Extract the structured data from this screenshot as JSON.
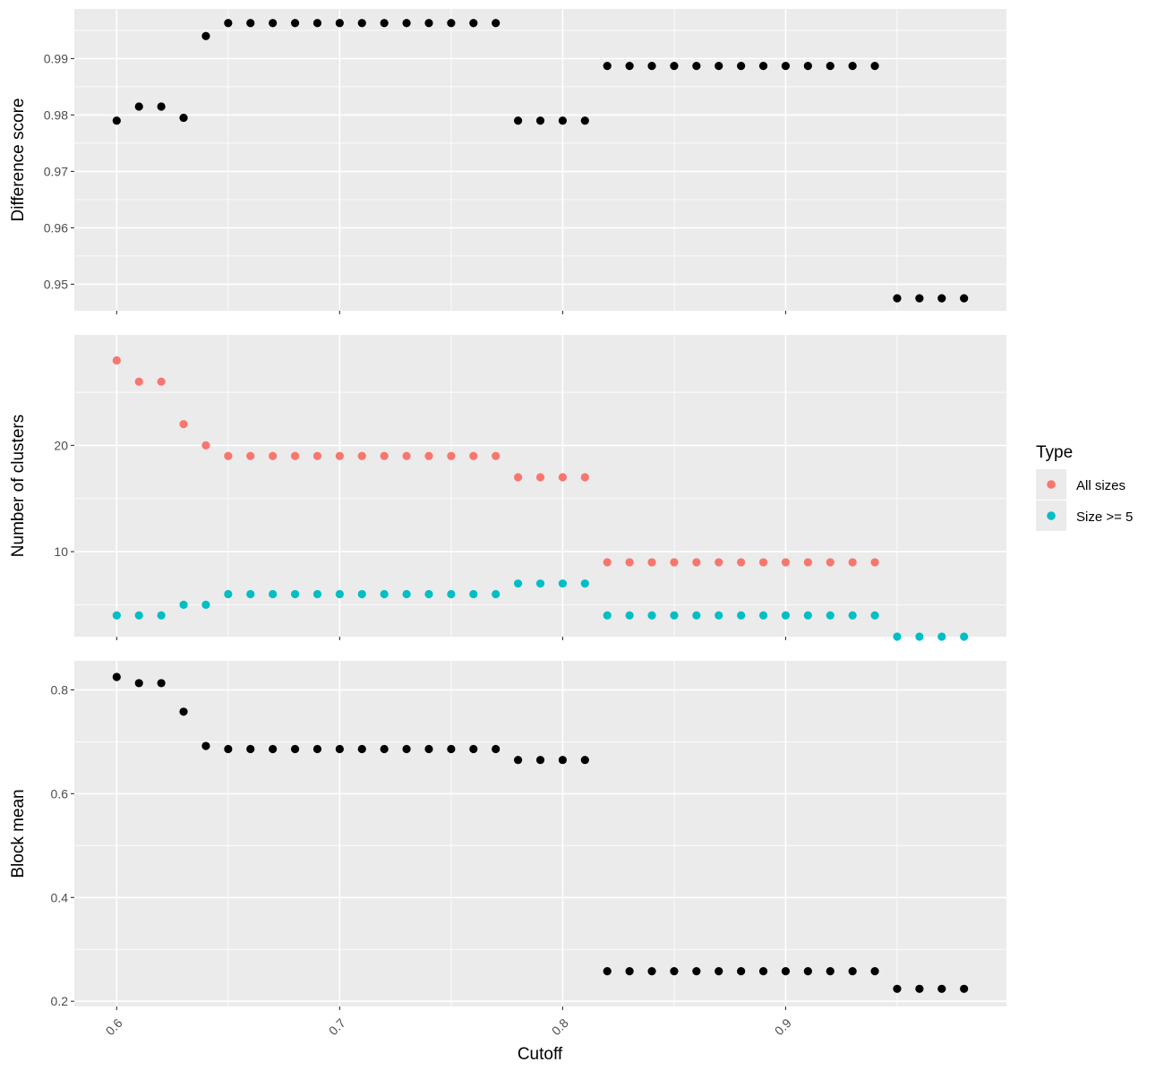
{
  "chart_data": {
    "type": "scatter",
    "xlabel": "Cutoff",
    "x_ticks": [
      "0.6",
      "0.7",
      "0.8",
      "0.9"
    ],
    "xlim": [
      0.581,
      0.999
    ],
    "colors": {
      "all_sizes": "#F8766D",
      "size_ge_5": "#00BFC4",
      "single": "#000000"
    },
    "legend": {
      "title": "Type",
      "position": "right",
      "items": [
        "All sizes",
        "Size >= 5"
      ]
    },
    "grid": true,
    "panels": [
      {
        "ylabel": "Difference score",
        "ylim": [
          0.9453,
          0.9988
        ],
        "y_ticks": [
          0.95,
          0.96,
          0.97,
          0.98,
          0.99
        ],
        "y_tick_labels": [
          "0.95",
          "0.96",
          "0.97",
          "0.98",
          "0.99"
        ],
        "y_minor": [
          0.955,
          0.965,
          0.975,
          0.985,
          0.995
        ],
        "series": [
          {
            "color_key": "single",
            "x": [
              0.6,
              0.61,
              0.62,
              0.63,
              0.64,
              0.65,
              0.66,
              0.67,
              0.68,
              0.69,
              0.7,
              0.71,
              0.72,
              0.73,
              0.74,
              0.75,
              0.76,
              0.77,
              0.78,
              0.79,
              0.8,
              0.81,
              0.82,
              0.83,
              0.84,
              0.85,
              0.86,
              0.87,
              0.88,
              0.89,
              0.9,
              0.91,
              0.92,
              0.93,
              0.94,
              0.95,
              0.96,
              0.97,
              0.98
            ],
            "y": [
              0.979,
              0.9815,
              0.9815,
              0.9795,
              0.994,
              0.9963,
              0.9963,
              0.9963,
              0.9963,
              0.9963,
              0.9963,
              0.9963,
              0.9963,
              0.9963,
              0.9963,
              0.9963,
              0.9963,
              0.9963,
              0.979,
              0.979,
              0.979,
              0.979,
              0.9887,
              0.9887,
              0.9887,
              0.9887,
              0.9887,
              0.9887,
              0.9887,
              0.9887,
              0.9887,
              0.9887,
              0.9887,
              0.9887,
              0.9887,
              0.9475,
              0.9475,
              0.9475,
              0.9475
            ]
          }
        ]
      },
      {
        "ylabel": "Number of clusters",
        "ylim": [
          2.0,
          30.4
        ],
        "y_ticks": [
          10,
          20
        ],
        "y_tick_labels": [
          "10",
          "20"
        ],
        "y_minor": [
          5,
          15,
          25
        ],
        "series": [
          {
            "name": "All sizes",
            "color_key": "all_sizes",
            "x": [
              0.6,
              0.61,
              0.62,
              0.63,
              0.64,
              0.65,
              0.66,
              0.67,
              0.68,
              0.69,
              0.7,
              0.71,
              0.72,
              0.73,
              0.74,
              0.75,
              0.76,
              0.77,
              0.78,
              0.79,
              0.8,
              0.81,
              0.82,
              0.83,
              0.84,
              0.85,
              0.86,
              0.87,
              0.88,
              0.89,
              0.9,
              0.91,
              0.92,
              0.93,
              0.94
            ],
            "y": [
              28,
              26,
              26,
              22,
              20,
              19,
              19,
              19,
              19,
              19,
              19,
              19,
              19,
              19,
              19,
              19,
              19,
              19,
              17,
              17,
              17,
              17,
              9,
              9,
              9,
              9,
              9,
              9,
              9,
              9,
              9,
              9,
              9,
              9,
              9
            ]
          },
          {
            "name": "Size >= 5",
            "color_key": "size_ge_5",
            "x": [
              0.6,
              0.61,
              0.62,
              0.63,
              0.64,
              0.65,
              0.66,
              0.67,
              0.68,
              0.69,
              0.7,
              0.71,
              0.72,
              0.73,
              0.74,
              0.75,
              0.76,
              0.77,
              0.78,
              0.79,
              0.8,
              0.81,
              0.82,
              0.83,
              0.84,
              0.85,
              0.86,
              0.87,
              0.88,
              0.89,
              0.9,
              0.91,
              0.92,
              0.93,
              0.94,
              0.95,
              0.96,
              0.97,
              0.98
            ],
            "y": [
              4,
              4,
              4,
              5,
              5,
              6,
              6,
              6,
              6,
              6,
              6,
              6,
              6,
              6,
              6,
              6,
              6,
              6,
              7,
              7,
              7,
              7,
              4,
              4,
              4,
              4,
              4,
              4,
              4,
              4,
              4,
              4,
              4,
              4,
              4,
              2,
              2,
              2,
              2
            ]
          }
        ]
      },
      {
        "ylabel": "Block mean",
        "ylim": [
          0.19,
          0.856
        ],
        "y_ticks": [
          0.2,
          0.4,
          0.6,
          0.8
        ],
        "y_tick_labels": [
          "0.2",
          "0.4",
          "0.6",
          "0.8"
        ],
        "y_minor": [
          0.3,
          0.5,
          0.7
        ],
        "series": [
          {
            "color_key": "single",
            "x": [
              0.6,
              0.61,
              0.62,
              0.63,
              0.64,
              0.65,
              0.66,
              0.67,
              0.68,
              0.69,
              0.7,
              0.71,
              0.72,
              0.73,
              0.74,
              0.75,
              0.76,
              0.77,
              0.78,
              0.79,
              0.8,
              0.81,
              0.82,
              0.83,
              0.84,
              0.85,
              0.86,
              0.87,
              0.88,
              0.89,
              0.9,
              0.91,
              0.92,
              0.93,
              0.94,
              0.95,
              0.96,
              0.97,
              0.98
            ],
            "y": [
              0.825,
              0.813,
              0.813,
              0.758,
              0.692,
              0.686,
              0.686,
              0.686,
              0.686,
              0.686,
              0.686,
              0.686,
              0.686,
              0.686,
              0.686,
              0.686,
              0.686,
              0.686,
              0.665,
              0.665,
              0.665,
              0.665,
              0.258,
              0.258,
              0.258,
              0.258,
              0.258,
              0.258,
              0.258,
              0.258,
              0.258,
              0.258,
              0.258,
              0.258,
              0.258,
              0.224,
              0.224,
              0.224,
              0.224
            ]
          }
        ]
      }
    ]
  }
}
